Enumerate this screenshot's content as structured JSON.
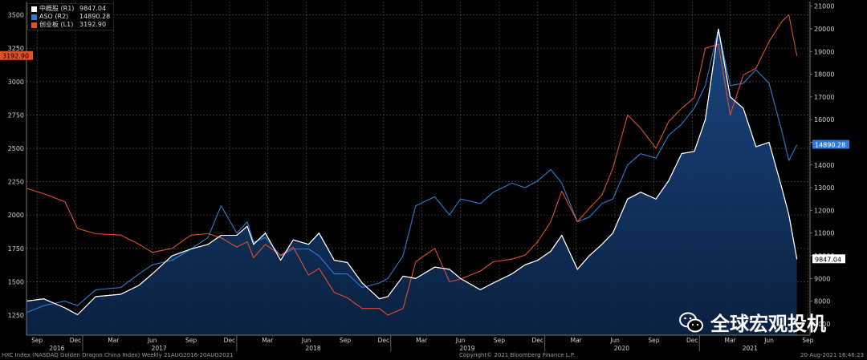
{
  "legend": [
    {
      "name": "中概股 (R1)",
      "value": "9847.04",
      "color": "#ffffff"
    },
    {
      "name": "ASO (R2)",
      "value": "14890.28",
      "color": "#2e7bd6"
    },
    {
      "name": "创业板 (L1)",
      "value": "3192.90",
      "color": "#e0502a"
    }
  ],
  "footer": {
    "left": "HXC Index (NASDAQ Golden Dragon China Index)  Weekly 21AUG2016-20AUG2021",
    "center": "Copyright© 2021 Bloomberg Finance L.P.",
    "right": "20-Aug-2021 16:46:23"
  },
  "watermark": {
    "text": "全球宏观投机",
    "icon": "wechat-icon"
  },
  "chart_data": {
    "type": "line",
    "title": "",
    "left_axis": {
      "ylim": [
        1100,
        3600
      ],
      "ticks": [
        1250,
        1500,
        1750,
        2000,
        2250,
        2500,
        2750,
        3000,
        3250,
        3500
      ]
    },
    "right_axis_1": {
      "ylim": [
        6500,
        21200
      ],
      "ticks": [
        7000,
        8000,
        9000,
        10000,
        11000,
        12000,
        13000,
        14000,
        15000,
        16000,
        17000,
        18000,
        19000,
        20000,
        21000
      ]
    },
    "x_range": [
      "2016-08-21",
      "2021-09-20"
    ],
    "x_ticks_months": [
      "Sep",
      "Dec",
      "Mar",
      "Jun",
      "Sep",
      "Dec",
      "Mar",
      "Jun",
      "Sep",
      "Dec",
      "Mar",
      "Jun",
      "Sep",
      "Dec",
      "Mar",
      "Jun",
      "Sep",
      "Dec",
      "Mar",
      "Jun",
      "Sep"
    ],
    "x_years": [
      "2016",
      "2017",
      "2018",
      "2019",
      "2020",
      "2021"
    ],
    "grid": true,
    "last_value_labels": {
      "left": "3192.90",
      "right_1": "9847.04",
      "right_2": "14890.28"
    },
    "series": [
      {
        "name": "中概股 (R1)",
        "axis": "right",
        "area": true,
        "color": "#ffffff",
        "points": [
          [
            "2016-08-21",
            8000
          ],
          [
            "2016-10-01",
            8100
          ],
          [
            "2016-11-20",
            7700
          ],
          [
            "2016-12-20",
            7400
          ],
          [
            "2017-02-01",
            8200
          ],
          [
            "2017-04-01",
            8300
          ],
          [
            "2017-05-15",
            8700
          ],
          [
            "2017-06-15",
            9200
          ],
          [
            "2017-08-01",
            10000
          ],
          [
            "2017-09-15",
            10300
          ],
          [
            "2017-10-25",
            10500
          ],
          [
            "2017-11-25",
            10900
          ],
          [
            "2018-01-01",
            10900
          ],
          [
            "2018-01-26",
            11300
          ],
          [
            "2018-02-10",
            10500
          ],
          [
            "2018-03-10",
            11000
          ],
          [
            "2018-04-15",
            9800
          ],
          [
            "2018-05-15",
            10700
          ],
          [
            "2018-06-20",
            10500
          ],
          [
            "2018-07-15",
            11000
          ],
          [
            "2018-08-20",
            9800
          ],
          [
            "2018-09-20",
            9700
          ],
          [
            "2018-10-25",
            8800
          ],
          [
            "2018-12-05",
            8100
          ],
          [
            "2018-12-25",
            8200
          ],
          [
            "2019-01-30",
            9100
          ],
          [
            "2019-03-01",
            9000
          ],
          [
            "2019-04-15",
            9500
          ],
          [
            "2019-05-20",
            9400
          ],
          [
            "2019-06-15",
            9000
          ],
          [
            "2019-08-01",
            8500
          ],
          [
            "2019-09-01",
            8800
          ],
          [
            "2019-10-15",
            9200
          ],
          [
            "2019-11-15",
            9600
          ],
          [
            "2019-12-15",
            9800
          ],
          [
            "2020-01-15",
            10200
          ],
          [
            "2020-02-10",
            10900
          ],
          [
            "2020-03-18",
            9400
          ],
          [
            "2020-04-15",
            10000
          ],
          [
            "2020-05-15",
            10500
          ],
          [
            "2020-06-10",
            11000
          ],
          [
            "2020-07-15",
            12500
          ],
          [
            "2020-08-15",
            12800
          ],
          [
            "2020-09-20",
            12500
          ],
          [
            "2020-10-20",
            13300
          ],
          [
            "2020-11-20",
            14500
          ],
          [
            "2020-12-20",
            14600
          ],
          [
            "2021-01-15",
            16000
          ],
          [
            "2021-02-15",
            20000
          ],
          [
            "2021-03-15",
            17000
          ],
          [
            "2021-04-15",
            16500
          ],
          [
            "2021-05-15",
            14800
          ],
          [
            "2021-06-15",
            15000
          ],
          [
            "2021-07-15",
            13000
          ],
          [
            "2021-08-01",
            11800
          ],
          [
            "2021-08-20",
            9847
          ]
        ]
      },
      {
        "name": "ASO (R2)",
        "axis": "right",
        "area": false,
        "color": "#2e7bd6",
        "points": [
          [
            "2016-08-21",
            7500
          ],
          [
            "2016-10-01",
            7800
          ],
          [
            "2016-11-20",
            8000
          ],
          [
            "2016-12-20",
            7800
          ],
          [
            "2017-02-01",
            8500
          ],
          [
            "2017-04-01",
            8600
          ],
          [
            "2017-05-15",
            9200
          ],
          [
            "2017-06-15",
            9600
          ],
          [
            "2017-08-01",
            9800
          ],
          [
            "2017-09-15",
            10300
          ],
          [
            "2017-10-25",
            10800
          ],
          [
            "2017-11-25",
            12200
          ],
          [
            "2018-01-01",
            11000
          ],
          [
            "2018-01-26",
            11500
          ],
          [
            "2018-02-10",
            10600
          ],
          [
            "2018-03-10",
            10800
          ],
          [
            "2018-04-15",
            10000
          ],
          [
            "2018-05-15",
            10300
          ],
          [
            "2018-06-20",
            10300
          ],
          [
            "2018-07-15",
            10000
          ],
          [
            "2018-08-20",
            9200
          ],
          [
            "2018-09-20",
            9200
          ],
          [
            "2018-10-25",
            8600
          ],
          [
            "2018-12-05",
            8800
          ],
          [
            "2018-12-25",
            9000
          ],
          [
            "2019-01-30",
            10000
          ],
          [
            "2019-03-01",
            12200
          ],
          [
            "2019-04-15",
            12600
          ],
          [
            "2019-05-20",
            11800
          ],
          [
            "2019-06-15",
            12500
          ],
          [
            "2019-08-01",
            12300
          ],
          [
            "2019-09-01",
            12800
          ],
          [
            "2019-10-15",
            13200
          ],
          [
            "2019-11-15",
            13000
          ],
          [
            "2019-12-15",
            13300
          ],
          [
            "2020-01-15",
            13800
          ],
          [
            "2020-02-10",
            13200
          ],
          [
            "2020-03-18",
            11500
          ],
          [
            "2020-04-15",
            11700
          ],
          [
            "2020-05-15",
            12300
          ],
          [
            "2020-06-10",
            12500
          ],
          [
            "2020-07-15",
            14000
          ],
          [
            "2020-08-15",
            14500
          ],
          [
            "2020-09-20",
            14300
          ],
          [
            "2020-10-20",
            15300
          ],
          [
            "2020-11-20",
            15800
          ],
          [
            "2020-12-20",
            16500
          ],
          [
            "2021-01-15",
            17500
          ],
          [
            "2021-02-15",
            20000
          ],
          [
            "2021-03-15",
            17500
          ],
          [
            "2021-04-15",
            17600
          ],
          [
            "2021-05-15",
            18200
          ],
          [
            "2021-06-15",
            17600
          ],
          [
            "2021-07-15",
            15500
          ],
          [
            "2021-08-01",
            14200
          ],
          [
            "2021-08-20",
            14890
          ]
        ]
      },
      {
        "name": "创业板 (L1)",
        "axis": "left",
        "area": false,
        "color": "#e0502a",
        "points": [
          [
            "2016-08-21",
            2200
          ],
          [
            "2016-10-01",
            2160
          ],
          [
            "2016-11-20",
            2100
          ],
          [
            "2016-12-20",
            1900
          ],
          [
            "2017-02-01",
            1860
          ],
          [
            "2017-04-01",
            1850
          ],
          [
            "2017-05-15",
            1780
          ],
          [
            "2017-06-15",
            1720
          ],
          [
            "2017-08-01",
            1750
          ],
          [
            "2017-09-15",
            1850
          ],
          [
            "2017-10-25",
            1860
          ],
          [
            "2017-11-25",
            1830
          ],
          [
            "2018-01-01",
            1760
          ],
          [
            "2018-01-26",
            1800
          ],
          [
            "2018-02-10",
            1680
          ],
          [
            "2018-03-10",
            1780
          ],
          [
            "2018-04-15",
            1700
          ],
          [
            "2018-05-15",
            1760
          ],
          [
            "2018-06-20",
            1550
          ],
          [
            "2018-07-15",
            1600
          ],
          [
            "2018-08-20",
            1420
          ],
          [
            "2018-09-20",
            1380
          ],
          [
            "2018-10-25",
            1300
          ],
          [
            "2018-12-05",
            1300
          ],
          [
            "2018-12-25",
            1250
          ],
          [
            "2019-01-30",
            1300
          ],
          [
            "2019-03-01",
            1650
          ],
          [
            "2019-04-15",
            1750
          ],
          [
            "2019-05-20",
            1500
          ],
          [
            "2019-06-15",
            1520
          ],
          [
            "2019-08-01",
            1580
          ],
          [
            "2019-09-01",
            1650
          ],
          [
            "2019-10-15",
            1670
          ],
          [
            "2019-11-15",
            1700
          ],
          [
            "2019-12-15",
            1800
          ],
          [
            "2020-01-15",
            1950
          ],
          [
            "2020-02-10",
            2180
          ],
          [
            "2020-03-18",
            1950
          ],
          [
            "2020-04-15",
            2050
          ],
          [
            "2020-05-15",
            2150
          ],
          [
            "2020-06-10",
            2350
          ],
          [
            "2020-07-15",
            2750
          ],
          [
            "2020-08-15",
            2650
          ],
          [
            "2020-09-20",
            2500
          ],
          [
            "2020-10-20",
            2700
          ],
          [
            "2020-11-20",
            2800
          ],
          [
            "2020-12-20",
            2880
          ],
          [
            "2021-01-15",
            3250
          ],
          [
            "2021-02-15",
            3280
          ],
          [
            "2021-03-15",
            2750
          ],
          [
            "2021-04-15",
            3050
          ],
          [
            "2021-05-15",
            3100
          ],
          [
            "2021-06-15",
            3300
          ],
          [
            "2021-07-15",
            3450
          ],
          [
            "2021-08-01",
            3500
          ],
          [
            "2021-08-20",
            3193
          ]
        ]
      }
    ]
  }
}
